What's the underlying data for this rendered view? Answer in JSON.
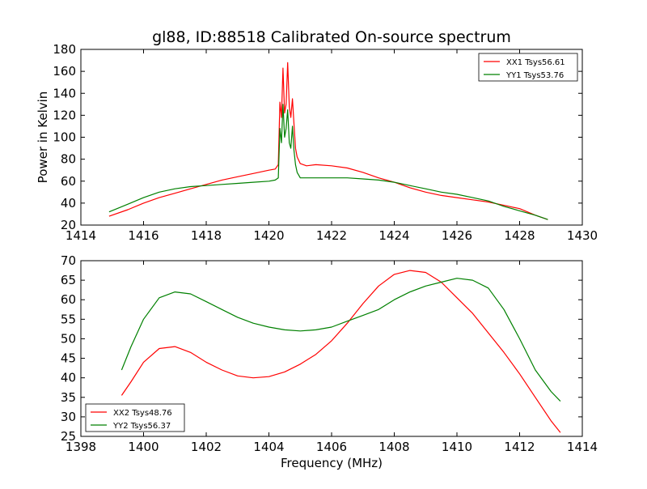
{
  "chart_data": [
    {
      "type": "line",
      "title": "gl88, ID:88518 Calibrated On-source spectrum",
      "xlabel": "",
      "ylabel": "Power in Kelvin",
      "xlim": [
        1414,
        1430
      ],
      "ylim": [
        20,
        180
      ],
      "xticks": [
        "1414",
        "1416",
        "1418",
        "1420",
        "1422",
        "1424",
        "1426",
        "1428",
        "1430"
      ],
      "yticks": [
        "20",
        "40",
        "60",
        "80",
        "100",
        "120",
        "140",
        "160",
        "180"
      ],
      "grid": false,
      "legend_position": "top-right",
      "series": [
        {
          "name": "XX1 Tsys56.61",
          "color": "#ff0000",
          "x": [
            1414.9,
            1415.5,
            1416.0,
            1416.5,
            1417.0,
            1417.5,
            1418.0,
            1418.5,
            1419.0,
            1419.5,
            1420.0,
            1420.2,
            1420.3,
            1420.35,
            1420.4,
            1420.45,
            1420.5,
            1420.55,
            1420.6,
            1420.65,
            1420.7,
            1420.75,
            1420.8,
            1420.85,
            1420.9,
            1421.0,
            1421.2,
            1421.5,
            1422.0,
            1422.5,
            1423.0,
            1423.5,
            1424.0,
            1424.5,
            1425.0,
            1425.5,
            1426.0,
            1426.5,
            1427.0,
            1427.5,
            1428.0,
            1428.5,
            1428.9
          ],
          "y": [
            28,
            34,
            40,
            45,
            49,
            53,
            57,
            61,
            64,
            67,
            70,
            71,
            75,
            132,
            118,
            163,
            122,
            130,
            168,
            128,
            118,
            135,
            112,
            90,
            82,
            76,
            74,
            75,
            74,
            72,
            68,
            63,
            59,
            54,
            50,
            47,
            45,
            43,
            41,
            38,
            35,
            29,
            25
          ]
        },
        {
          "name": "YY1 Tsys53.76",
          "color": "#008000",
          "x": [
            1414.9,
            1415.5,
            1416.0,
            1416.5,
            1417.0,
            1417.5,
            1418.0,
            1418.5,
            1419.0,
            1419.5,
            1420.0,
            1420.2,
            1420.3,
            1420.35,
            1420.4,
            1420.45,
            1420.5,
            1420.55,
            1420.6,
            1420.65,
            1420.7,
            1420.75,
            1420.8,
            1420.85,
            1420.9,
            1421.0,
            1421.5,
            1422.0,
            1422.5,
            1423.0,
            1423.5,
            1424.0,
            1424.5,
            1425.0,
            1425.5,
            1426.0,
            1426.5,
            1427.0,
            1427.5,
            1428.0,
            1428.5,
            1428.9
          ],
          "y": [
            32,
            39,
            45,
            50,
            53,
            55,
            56,
            57,
            58,
            59,
            60,
            61,
            63,
            108,
            95,
            130,
            100,
            108,
            125,
            95,
            90,
            110,
            88,
            75,
            68,
            63,
            63,
            63,
            63,
            62,
            61,
            59,
            56,
            53,
            50,
            48,
            45,
            42,
            37,
            33,
            29,
            25
          ]
        }
      ]
    },
    {
      "type": "line",
      "title": "",
      "xlabel": "Frequency (MHz)",
      "ylabel": "",
      "xlim": [
        1398,
        1414
      ],
      "ylim": [
        25,
        70
      ],
      "xticks": [
        "1398",
        "1400",
        "1402",
        "1404",
        "1406",
        "1408",
        "1410",
        "1412",
        "1414"
      ],
      "yticks": [
        "25",
        "30",
        "35",
        "40",
        "45",
        "50",
        "55",
        "60",
        "65",
        "70"
      ],
      "grid": false,
      "legend_position": "bottom-left",
      "series": [
        {
          "name": "XX2 Tsys48.76",
          "color": "#ff0000",
          "x": [
            1399.3,
            1399.6,
            1400.0,
            1400.5,
            1401.0,
            1401.5,
            1402.0,
            1402.5,
            1403.0,
            1403.5,
            1404.0,
            1404.5,
            1405.0,
            1405.5,
            1406.0,
            1406.5,
            1407.0,
            1407.5,
            1408.0,
            1408.5,
            1409.0,
            1409.5,
            1410.0,
            1410.5,
            1411.0,
            1411.5,
            1412.0,
            1412.5,
            1413.0,
            1413.3
          ],
          "y": [
            35.5,
            39,
            44,
            47.5,
            48,
            46.5,
            44,
            42,
            40.5,
            40,
            40.3,
            41.5,
            43.5,
            46,
            49.5,
            54,
            59,
            63.5,
            66.5,
            67.5,
            67,
            64.5,
            60.5,
            56.5,
            51.5,
            46.5,
            41,
            35,
            29,
            26
          ]
        },
        {
          "name": "YY2 Tsys56.37",
          "color": "#008000",
          "x": [
            1399.3,
            1399.6,
            1400.0,
            1400.5,
            1401.0,
            1401.5,
            1402.0,
            1402.5,
            1403.0,
            1403.5,
            1404.0,
            1404.5,
            1405.0,
            1405.5,
            1406.0,
            1406.5,
            1407.0,
            1407.5,
            1408.0,
            1408.5,
            1409.0,
            1409.5,
            1410.0,
            1410.5,
            1411.0,
            1411.5,
            1412.0,
            1412.5,
            1413.0,
            1413.3
          ],
          "y": [
            42,
            48,
            55,
            60.5,
            62,
            61.5,
            59.5,
            57.5,
            55.5,
            54,
            53,
            52.3,
            52,
            52.3,
            53,
            54.5,
            56,
            57.5,
            60,
            62,
            63.5,
            64.5,
            65.5,
            65,
            63,
            57.5,
            50,
            42,
            36.5,
            34
          ]
        }
      ]
    }
  ]
}
